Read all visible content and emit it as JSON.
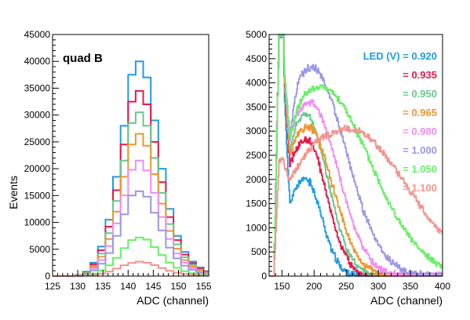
{
  "chart_data": [
    {
      "type": "histogram",
      "annotation": "quad B",
      "xlabel": "ADC (channel)",
      "ylabel": "Events",
      "xlim": [
        125,
        156
      ],
      "ylim": [
        0,
        45000
      ],
      "xticks": [
        125,
        130,
        135,
        140,
        145,
        150,
        155
      ],
      "yticks": [
        0,
        5000,
        10000,
        15000,
        20000,
        25000,
        30000,
        35000,
        40000,
        45000
      ],
      "bin_start": 125,
      "bin_width": 1.5,
      "series": [
        {
          "voltage": "0.920",
          "color": "#1e9be6",
          "values": [
            0,
            0,
            0,
            200,
            800,
            2500,
            5500,
            10500,
            18500,
            28000,
            37500,
            40000,
            37000,
            29000,
            20000,
            12500,
            7500,
            4500,
            2700,
            1600,
            900
          ]
        },
        {
          "voltage": "0.935",
          "color": "#e6194b",
          "values": [
            0,
            0,
            0,
            180,
            700,
            2200,
            4800,
            9200,
            16000,
            24500,
            32500,
            34500,
            32000,
            25000,
            17500,
            11000,
            6700,
            4000,
            2400,
            1400,
            800
          ]
        },
        {
          "voltage": "0.950",
          "color": "#66c98a",
          "values": [
            0,
            0,
            0,
            150,
            600,
            1900,
            4200,
            8000,
            14000,
            21500,
            28500,
            30500,
            28000,
            22000,
            15500,
            9700,
            5900,
            3500,
            2100,
            1200,
            700
          ]
        },
        {
          "voltage": "0.965",
          "color": "#f0952f",
          "values": [
            0,
            0,
            0,
            130,
            500,
            1700,
            3600,
            6900,
            12000,
            18500,
            24500,
            26500,
            24300,
            19000,
            13500,
            8400,
            5100,
            3000,
            1800,
            1050,
            600
          ]
        },
        {
          "voltage": "0.980",
          "color": "#f28cf2",
          "values": [
            0,
            0,
            0,
            100,
            420,
            1400,
            3000,
            5600,
            9800,
            15000,
            19800,
            21500,
            19700,
            15500,
            11000,
            6900,
            4200,
            2500,
            1500,
            850,
            500
          ]
        },
        {
          "voltage": "1.000",
          "color": "#9b96e6",
          "values": [
            0,
            0,
            0,
            80,
            330,
            1050,
            2300,
            4300,
            7500,
            11500,
            15000,
            15800,
            14800,
            11800,
            8500,
            5300,
            3300,
            1950,
            1150,
            650,
            380
          ]
        },
        {
          "voltage": "1.050",
          "color": "#66f066",
          "values": [
            0,
            0,
            0,
            40,
            160,
            500,
            1050,
            2000,
            3400,
            5200,
            6700,
            7200,
            6800,
            5400,
            3900,
            2500,
            1550,
            900,
            550,
            310,
            180
          ]
        },
        {
          "voltage": "1.100",
          "color": "#f5938c",
          "values": [
            0,
            0,
            0,
            20,
            70,
            200,
            450,
            850,
            1400,
            2000,
            2450,
            2700,
            2500,
            2050,
            1500,
            1000,
            650,
            400,
            240,
            140,
            80
          ]
        }
      ]
    },
    {
      "type": "histogram",
      "xlabel": "ADC (channel)",
      "ylabel": "",
      "xlim": [
        130,
        400
      ],
      "ylim": [
        0,
        5000
      ],
      "xticks": [
        150,
        200,
        250,
        300,
        350,
        400
      ],
      "yticks": [
        0,
        500,
        1000,
        1500,
        2000,
        2500,
        3000,
        3500,
        4000,
        4500,
        5000
      ],
      "legend_title": "LED (V) = 0.920",
      "legend_entries": [
        "= 0.935",
        "= 0.950",
        "= 0.965",
        "= 0.980",
        "= 1.000",
        "= 1.050",
        "= 1.100"
      ],
      "legend_colors": [
        "#e6194b",
        "#66c98a",
        "#f0952f",
        "#f28cf2",
        "#9b96e6",
        "#66f066",
        "#f5938c"
      ],
      "legend_title_color": "#1e9be6",
      "series": [
        {
          "voltage": "0.920",
          "color": "#1e9be6",
          "ped": 5000,
          "valley": 1500,
          "peak": 1950,
          "mu": 180,
          "sig1": 11,
          "sig2": 26
        },
        {
          "voltage": "0.935",
          "color": "#e6194b",
          "ped": 5000,
          "valley": 2300,
          "peak": 2750,
          "mu": 180,
          "sig1": 12,
          "sig2": 32
        },
        {
          "voltage": "0.950",
          "color": "#66c98a",
          "ped": 5000,
          "valley": 2600,
          "peak": 3250,
          "mu": 178,
          "sig1": 12,
          "sig2": 35
        },
        {
          "voltage": "0.965",
          "color": "#f0952f",
          "ped": 5000,
          "valley": 2500,
          "peak": 3000,
          "mu": 180,
          "sig1": 12,
          "sig2": 40
        },
        {
          "voltage": "0.980",
          "color": "#f28cf2",
          "ped": 5000,
          "valley": 2800,
          "peak": 3500,
          "mu": 182,
          "sig1": 13,
          "sig2": 45
        },
        {
          "voltage": "1.000",
          "color": "#9b96e6",
          "ped": 5000,
          "valley": 2900,
          "peak": 4200,
          "mu": 182,
          "sig1": 14,
          "sig2": 55
        },
        {
          "voltage": "1.050",
          "color": "#66f066",
          "ped": 5000,
          "valley": 2900,
          "peak": 3800,
          "mu": 190,
          "sig1": 17,
          "sig2": 80
        },
        {
          "voltage": "1.100",
          "color": "#f5938c",
          "ped": 2400,
          "valley": 2000,
          "peak": 2950,
          "mu": 230,
          "sig1": 40,
          "sig2": 95
        }
      ]
    }
  ]
}
